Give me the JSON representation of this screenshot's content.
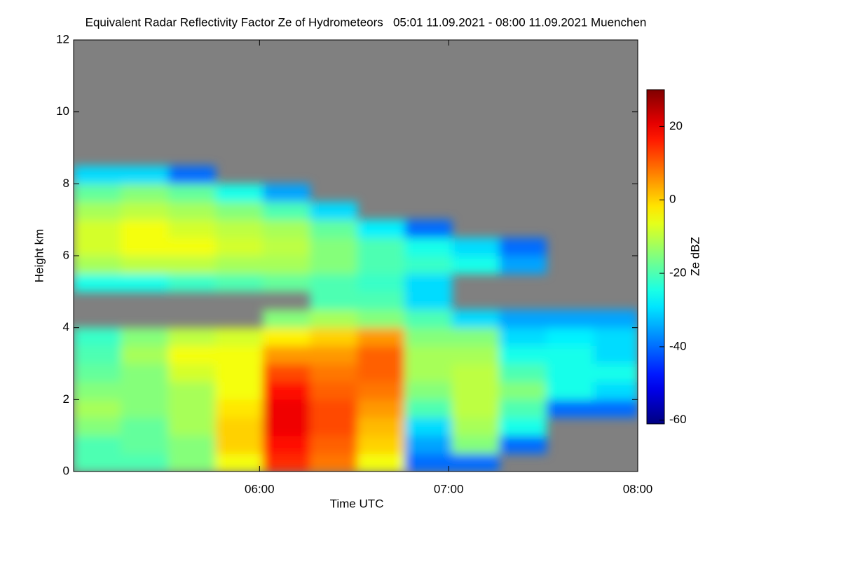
{
  "chart_data": {
    "type": "heatmap",
    "title": "Equivalent Radar Reflectivity Factor Ze of Hydrometeors   05:01 11.09.2021 - 08:00 11.09.2021 Muenchen",
    "xlabel": "Time UTC",
    "ylabel": "Height km",
    "colorbar_label": "Ze dBZ",
    "xlim": [
      301,
      480
    ],
    "xticks": [
      {
        "value": 360,
        "label": "06:00"
      },
      {
        "value": 420,
        "label": "07:00"
      },
      {
        "value": 480,
        "label": "08:00"
      }
    ],
    "ylim": [
      0,
      12
    ],
    "yticks": [
      0,
      2,
      4,
      6,
      8,
      10,
      12
    ],
    "zlim": [
      -61,
      30
    ],
    "zticks": [
      -60,
      -40,
      -20,
      0,
      20
    ],
    "colormap": "jet",
    "missing_color": "#808080",
    "xbins": [
      301,
      316,
      331,
      346,
      361,
      376,
      391,
      406,
      421,
      436,
      451,
      466,
      480
    ],
    "ybins": [
      0,
      0.5,
      1,
      1.5,
      2,
      2.5,
      3,
      3.5,
      4,
      4.5,
      5,
      5.5,
      6,
      6.5,
      7,
      7.5,
      8,
      8.5,
      9
    ],
    "z": [
      [
        -20,
        -20,
        -15,
        -5,
        15,
        8,
        -5,
        -40,
        -40,
        null,
        null,
        null
      ],
      [
        -20,
        -18,
        -15,
        0,
        18,
        10,
        0,
        -35,
        -15,
        -40,
        null,
        null
      ],
      [
        -15,
        -18,
        -12,
        0,
        20,
        12,
        2,
        -30,
        -12,
        -25,
        null,
        null
      ],
      [
        -12,
        -15,
        -12,
        -2,
        20,
        12,
        5,
        -20,
        -10,
        -20,
        -40,
        -40
      ],
      [
        -15,
        -15,
        -12,
        -5,
        18,
        10,
        8,
        -15,
        -10,
        -15,
        -25,
        -30
      ],
      [
        -18,
        -15,
        -8,
        -5,
        12,
        8,
        10,
        -12,
        -10,
        -20,
        -25,
        -25
      ],
      [
        -20,
        -12,
        -5,
        -5,
        5,
        5,
        10,
        -12,
        -12,
        -25,
        -25,
        -30
      ],
      [
        -22,
        -15,
        -10,
        -8,
        -3,
        0,
        5,
        -15,
        -15,
        -30,
        -28,
        -30
      ],
      [
        null,
        null,
        null,
        null,
        -15,
        -12,
        -15,
        -20,
        -30,
        -35,
        -35,
        -35
      ],
      [
        null,
        null,
        null,
        null,
        null,
        -20,
        -20,
        -30,
        null,
        null,
        null,
        null
      ],
      [
        -25,
        -25,
        -22,
        -20,
        -18,
        -20,
        -22,
        -30,
        null,
        null,
        null,
        null
      ],
      [
        -12,
        -10,
        -10,
        -12,
        -12,
        -15,
        -20,
        -22,
        -25,
        -35,
        null,
        null
      ],
      [
        -8,
        -5,
        -5,
        -8,
        -10,
        -15,
        -20,
        -25,
        -30,
        -40,
        null,
        null
      ],
      [
        -8,
        -5,
        -8,
        -10,
        -12,
        -18,
        -28,
        -40,
        null,
        null,
        null,
        null
      ],
      [
        -12,
        -10,
        -12,
        -15,
        -20,
        -30,
        null,
        null,
        null,
        null,
        null,
        null
      ],
      [
        -18,
        -15,
        -18,
        -25,
        -35,
        null,
        null,
        null,
        null,
        null,
        null,
        null
      ],
      [
        -30,
        -30,
        -40,
        null,
        null,
        null,
        null,
        null,
        null,
        null,
        null,
        null
      ],
      [
        null,
        null,
        null,
        null,
        null,
        null,
        null,
        null,
        null,
        null,
        null,
        null
      ]
    ]
  }
}
